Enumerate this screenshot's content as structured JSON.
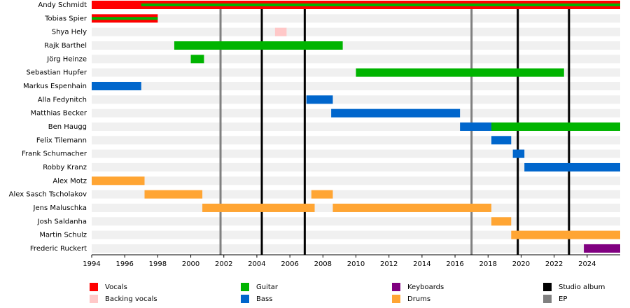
{
  "chart_data": {
    "type": "timeline",
    "xlim": [
      1994,
      2026
    ],
    "xticks": [
      1994,
      1996,
      1998,
      2000,
      2002,
      2004,
      2006,
      2008,
      2010,
      2012,
      2014,
      2016,
      2018,
      2020,
      2022,
      2024
    ],
    "roles": [
      {
        "name": "Vocals",
        "color": "#ff0000"
      },
      {
        "name": "Backing vocals",
        "color": "#ffc8c8"
      },
      {
        "name": "Guitar",
        "color": "#00b400"
      },
      {
        "name": "Bass",
        "color": "#0066cc"
      },
      {
        "name": "Keyboards",
        "color": "#800080"
      },
      {
        "name": "Drums",
        "color": "#ffa533"
      }
    ],
    "events": [
      {
        "name": "Studio album",
        "color": "#000000",
        "dates": [
          2004.3,
          2006.9,
          2019.8,
          2022.9
        ]
      },
      {
        "name": "EP",
        "color": "#808080",
        "dates": [
          2001.8,
          2017.0
        ]
      }
    ],
    "members": [
      {
        "name": "Andy Schmidt",
        "periods": [
          {
            "role": "Vocals",
            "start": 1994,
            "end": 2026
          },
          {
            "role": "Guitar",
            "start": 1997,
            "end": 2026
          }
        ]
      },
      {
        "name": "Tobias Spier",
        "periods": [
          {
            "role": "Vocals",
            "start": 1994,
            "end": 1998
          },
          {
            "role": "Guitar",
            "start": 1994,
            "end": 1998
          }
        ]
      },
      {
        "name": "Shya Hely",
        "periods": [
          {
            "role": "Backing vocals",
            "start": 2005.1,
            "end": 2005.8
          }
        ]
      },
      {
        "name": "Rajk Barthel",
        "periods": [
          {
            "role": "Guitar",
            "start": 1999,
            "end": 2009.2
          }
        ]
      },
      {
        "name": "Jörg Heinze",
        "periods": [
          {
            "role": "Guitar",
            "start": 2000,
            "end": 2000.8
          }
        ]
      },
      {
        "name": "Sebastian Hupfer",
        "periods": [
          {
            "role": "Guitar",
            "start": 2010,
            "end": 2022.6
          }
        ]
      },
      {
        "name": "Markus Espenhain",
        "periods": [
          {
            "role": "Bass",
            "start": 1994,
            "end": 1997
          }
        ]
      },
      {
        "name": "Alla Fedynitch",
        "periods": [
          {
            "role": "Bass",
            "start": 2007,
            "end": 2008.6
          }
        ]
      },
      {
        "name": "Matthias Becker",
        "periods": [
          {
            "role": "Bass",
            "start": 2008.5,
            "end": 2016.3
          }
        ]
      },
      {
        "name": "Ben Haugg",
        "periods": [
          {
            "role": "Bass",
            "start": 2016.3,
            "end": 2018.2
          },
          {
            "role": "Guitar",
            "start": 2018.2,
            "end": 2026
          }
        ]
      },
      {
        "name": "Felix Tilemann",
        "periods": [
          {
            "role": "Bass",
            "start": 2018.2,
            "end": 2019.4
          }
        ]
      },
      {
        "name": "Frank Schumacher",
        "periods": [
          {
            "role": "Bass",
            "start": 2019.5,
            "end": 2020.2
          }
        ]
      },
      {
        "name": "Robby Kranz",
        "periods": [
          {
            "role": "Bass",
            "start": 2020.2,
            "end": 2026
          }
        ]
      },
      {
        "name": "Alex Motz",
        "periods": [
          {
            "role": "Drums",
            "start": 1994,
            "end": 1997.2
          }
        ]
      },
      {
        "name": "Alex Sasch Tscholakov",
        "periods": [
          {
            "role": "Drums",
            "start": 1997.2,
            "end": 2000.7
          },
          {
            "role": "Drums",
            "start": 2007.3,
            "end": 2008.6
          }
        ]
      },
      {
        "name": "Jens Maluschka",
        "periods": [
          {
            "role": "Drums",
            "start": 2000.7,
            "end": 2007.5
          },
          {
            "role": "Drums",
            "start": 2008.6,
            "end": 2018.2
          }
        ]
      },
      {
        "name": "Josh Saldanha",
        "periods": [
          {
            "role": "Drums",
            "start": 2018.2,
            "end": 2019.4
          }
        ]
      },
      {
        "name": "Martin Schulz",
        "periods": [
          {
            "role": "Drums",
            "start": 2019.4,
            "end": 2026
          }
        ]
      },
      {
        "name": "Frederic Ruckert",
        "periods": [
          {
            "role": "Keyboards",
            "start": 2023.8,
            "end": 2026
          }
        ]
      }
    ]
  }
}
